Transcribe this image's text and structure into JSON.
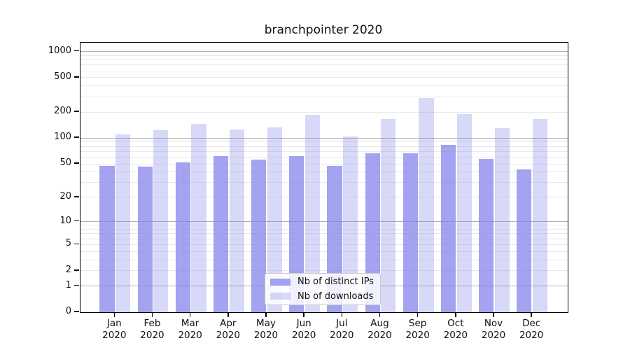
{
  "chart_data": {
    "type": "bar",
    "title": "branchpointer 2020",
    "categories": [
      "Jan 2020",
      "Feb 2020",
      "Mar 2020",
      "Apr 2020",
      "May 2020",
      "Jun 2020",
      "Jul 2020",
      "Aug 2020",
      "Sep 2020",
      "Oct 2020",
      "Nov 2020",
      "Dec 2020"
    ],
    "series": [
      {
        "name": "Nb of distinct IPs",
        "color": "#8080ea",
        "alpha": 0.72,
        "values": [
          47,
          46,
          52,
          62,
          56,
          62,
          47,
          67,
          66,
          83,
          57,
          43
        ]
      },
      {
        "name": "Nb of downloads",
        "color": "#8080ea",
        "alpha": 0.31,
        "values": [
          111,
          124,
          146,
          126,
          133,
          187,
          104,
          165,
          290,
          191,
          131,
          165
        ]
      }
    ],
    "xlabel": "",
    "ylabel": "",
    "yscale": "log10(1+y)",
    "ylim": [
      0,
      1265
    ],
    "y_ticks": [
      0,
      1,
      2,
      5,
      10,
      20,
      50,
      100,
      200,
      500,
      1000
    ],
    "y_major_dark_gridlines": [
      1,
      10,
      100,
      1000
    ],
    "y_minor_gridlines": [
      3,
      4,
      6,
      7,
      8,
      9,
      30,
      40,
      60,
      70,
      80,
      90,
      300,
      400,
      600,
      700,
      800,
      900
    ],
    "grid": true,
    "legend_position": "lower center",
    "colors": {
      "bar_distinct_ips_rendered": "#a3a3f0",
      "bar_downloads_rendered": "#d8d8f7",
      "gridline_major": "#b0b0b0",
      "gridline_minor": "#e9e9e9",
      "axis": "#000000",
      "text": "#111111",
      "legend_border": "#cbcbcb"
    }
  }
}
